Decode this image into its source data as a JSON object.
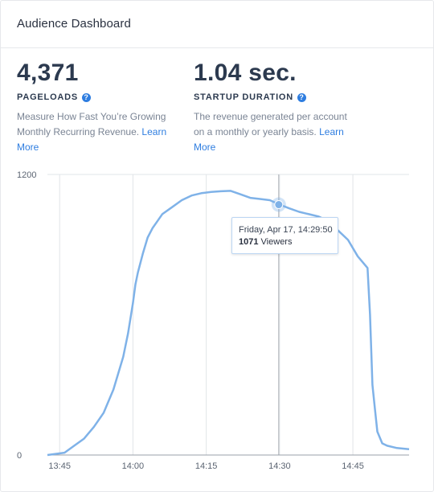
{
  "header": {
    "title": "Audience Dashboard"
  },
  "metrics": [
    {
      "value": "4,371",
      "label": "PAGELOADS",
      "description": "Measure How Fast You’re Growing Monthly Recurring Revenue.",
      "link": "Learn More"
    },
    {
      "value": "1.04 sec.",
      "label": "STARTUP DURATION",
      "description": "The revenue generated per account on a monthly or yearly basis.",
      "link": "Learn More"
    }
  ],
  "tooltip": {
    "date": "Friday, Apr 17, 14:29:50",
    "value": "1071",
    "unit": "Viewers"
  },
  "colors": {
    "line": "#7fb2e8",
    "accent": "#2e7de0",
    "grid": "#e1e4e8"
  },
  "chart_data": {
    "type": "line",
    "ylim": [
      0,
      1200
    ],
    "y_ticks": [
      "0",
      "1200"
    ],
    "x_ticks": [
      {
        "label": "13:45",
        "t": 825
      },
      {
        "label": "14:00",
        "t": 840
      },
      {
        "label": "14:15",
        "t": 855
      },
      {
        "label": "14:30",
        "t": 870
      },
      {
        "label": "14:45",
        "t": 885
      }
    ],
    "xlim": [
      822.5,
      896.5
    ],
    "series": [
      {
        "x": [
          822.5,
          826,
          828,
          830,
          832,
          834,
          836,
          838,
          839,
          840,
          840.5,
          841,
          842,
          843,
          844,
          845,
          846,
          848,
          850,
          852,
          854,
          856,
          858,
          860,
          862,
          864,
          866,
          868,
          870,
          872,
          874,
          876,
          878,
          880,
          882,
          884,
          886,
          888,
          888.5,
          889,
          889.5,
          890,
          891,
          892,
          894,
          896.5
        ],
        "y": [
          0,
          10,
          40,
          70,
          120,
          180,
          280,
          420,
          520,
          650,
          730,
          780,
          860,
          930,
          970,
          1000,
          1030,
          1060,
          1090,
          1110,
          1120,
          1125,
          1128,
          1130,
          1115,
          1100,
          1095,
          1090,
          1071,
          1055,
          1040,
          1030,
          1020,
          1000,
          960,
          920,
          850,
          800,
          600,
          300,
          200,
          100,
          50,
          40,
          30,
          25
        ]
      }
    ],
    "highlight": {
      "x": 869.83,
      "y": 1071
    }
  }
}
